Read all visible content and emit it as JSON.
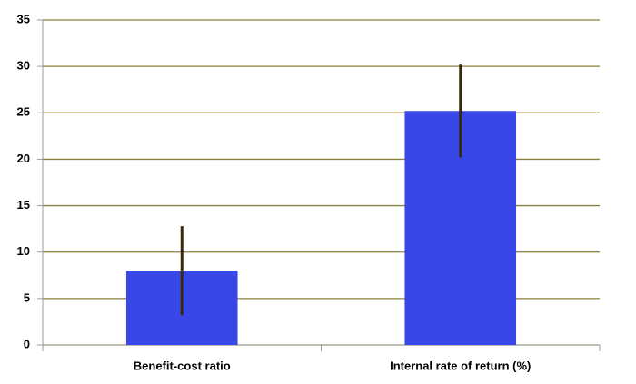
{
  "chart_data": {
    "type": "bar",
    "categories": [
      "Benefit-cost ratio",
      "Internal rate of return (%)"
    ],
    "values": [
      8,
      25.2
    ],
    "errors": [
      4.8,
      5
    ],
    "color": "#3a47e8",
    "error_color": "#3b2a0a",
    "ylim": [
      0,
      35
    ],
    "yticks": [
      0,
      5,
      10,
      15,
      20,
      25,
      30,
      35
    ],
    "grid": true,
    "grid_color": "#8b7d3a"
  }
}
